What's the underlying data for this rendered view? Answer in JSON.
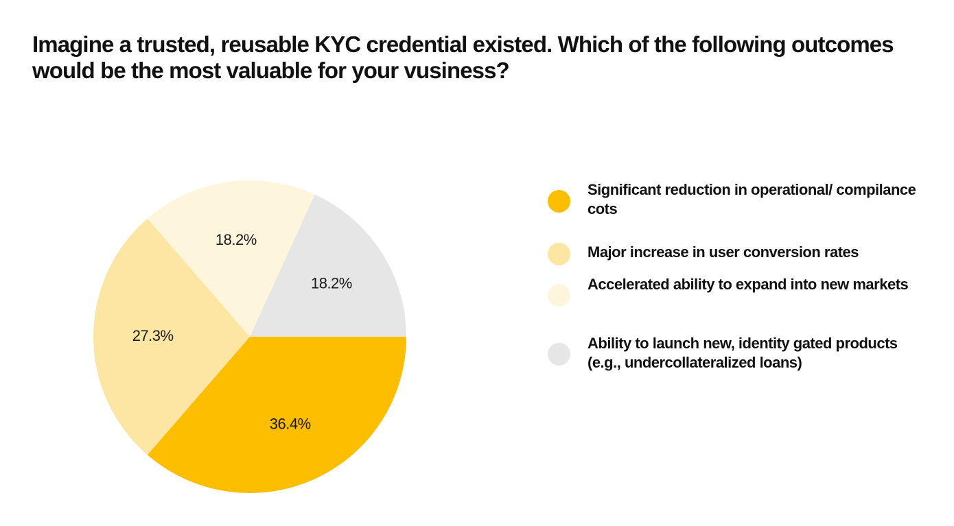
{
  "page": {
    "title": "Imagine a trusted, reusable KYC credential existed. Which of the following outcomes would be the most valuable for your vusiness?"
  },
  "colors": {
    "background": "#ffffff",
    "text": "#111111",
    "series": [
      "#FDBE00",
      "#FDE5A3",
      "#FEF5DD",
      "#E6E6E6"
    ]
  },
  "chart_data": {
    "type": "pie",
    "title": "Imagine a trusted, reusable KYC credential existed. Which of the following outcomes would be the most valuable for your vusiness?",
    "categories": [
      "Significant reduction in operational/ compilance cots",
      "Major increase in user conversion rates",
      "Accelerated ability to expand into new markets",
      "Ability to launch new, identity gated products (e.g., undercollateralized loans)"
    ],
    "values": [
      36.4,
      27.3,
      18.2,
      18.2
    ],
    "labels": [
      "36.4%",
      "27.3%",
      "18.2%",
      "18.2%"
    ],
    "colors": [
      "#FDBE00",
      "#FDE5A3",
      "#FEF5DD",
      "#E6E6E6"
    ],
    "start_angle_deg": 0,
    "direction": "clockwise",
    "legend_position": "right"
  },
  "legend": {
    "items": [
      {
        "label": "Significant reduction in operational/ compilance cots",
        "color": "#FDBE00"
      },
      {
        "label": "Major increase in user conversion rates",
        "color": "#FDE5A3"
      },
      {
        "label": "Accelerated ability to expand into new markets",
        "color": "#FEF5DD"
      },
      {
        "label": "Ability to launch new, identity gated products (e.g., undercollateralized loans)",
        "color": "#E6E6E6"
      }
    ]
  }
}
